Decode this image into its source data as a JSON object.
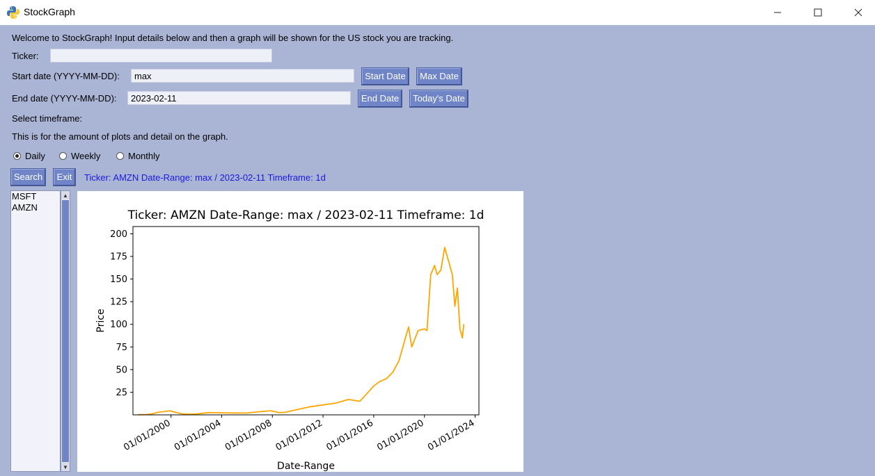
{
  "window": {
    "title": "StockGraph"
  },
  "form": {
    "welcome": "Welcome to StockGraph! Input details below and then a graph will be shown for the US stock you are tracking.",
    "ticker_label": "Ticker:",
    "ticker_value": "",
    "start_label": "Start date (YYYY-MM-DD):",
    "start_value": "max",
    "start_date_button": "Start Date",
    "max_date_button": "Max Date",
    "end_label": "End date (YYYY-MM-DD):",
    "end_value": "2023-02-11",
    "end_date_button": "End Date",
    "todays_date_button": "Today's Date",
    "timeframe_label": "Select timeframe:",
    "timeframe_note": "This is for the amount of plots and detail on the graph.",
    "timeframes": [
      {
        "label": "Daily",
        "selected": true
      },
      {
        "label": "Weekly",
        "selected": false
      },
      {
        "label": "Monthly",
        "selected": false
      }
    ],
    "search_button": "Search",
    "exit_button": "Exit",
    "status": "Ticker: AMZN Date-Range: max / 2023-02-11 Timeframe: 1d"
  },
  "history": [
    "MSFT",
    "AMZN"
  ],
  "colors": {
    "background": "#aab4d4",
    "button": "#6f85c8",
    "status": "#1a1adf",
    "line": "#ffa500"
  },
  "chart_data": {
    "type": "line",
    "title": "Ticker: AMZN Date-Range: max / 2023-02-11 Timeframe: 1d",
    "xlabel": "Date-Range",
    "ylabel": "Price",
    "xticks": [
      "01/01/2000",
      "01/01/2004",
      "01/01/2008",
      "01/01/2012",
      "01/01/2016",
      "01/01/2020",
      "01/01/2024"
    ],
    "yticks": [
      25,
      50,
      75,
      100,
      125,
      150,
      175,
      200
    ],
    "xlim": [
      1997.0,
      2024.3
    ],
    "ylim": [
      0,
      208
    ],
    "grid": false,
    "series": [
      {
        "color": "#ffa500",
        "x": [
          1997.4,
          1998.0,
          1998.5,
          1999.0,
          1999.5,
          1999.9,
          2000.3,
          2000.8,
          2001.3,
          2002.0,
          2003.0,
          2004.0,
          2005.0,
          2006.0,
          2007.0,
          2007.9,
          2008.5,
          2009.0,
          2010.0,
          2011.0,
          2012.0,
          2013.0,
          2014.0,
          2014.9,
          2015.5,
          2016.0,
          2016.5,
          2017.0,
          2017.5,
          2018.0,
          2018.5,
          2018.75,
          2019.0,
          2019.5,
          2020.0,
          2020.2,
          2020.5,
          2020.8,
          2021.0,
          2021.3,
          2021.6,
          2021.9,
          2022.2,
          2022.4,
          2022.6,
          2022.8,
          2023.0,
          2023.1
        ],
        "y": [
          0.2,
          0.3,
          1.0,
          3.0,
          3.5,
          4.5,
          3.0,
          1.2,
          0.8,
          0.9,
          2.5,
          2.2,
          2.1,
          2.0,
          3.5,
          4.5,
          2.5,
          2.8,
          6.0,
          9.0,
          11.0,
          13.0,
          17.0,
          15.0,
          24.0,
          32.0,
          37.0,
          40.0,
          47.0,
          60.0,
          85.0,
          97.0,
          75.0,
          93.0,
          95.0,
          93.0,
          155.0,
          165.0,
          155.0,
          160.0,
          185.0,
          170.0,
          155.0,
          120.0,
          140.0,
          95.0,
          85.0,
          100.0
        ]
      }
    ]
  }
}
